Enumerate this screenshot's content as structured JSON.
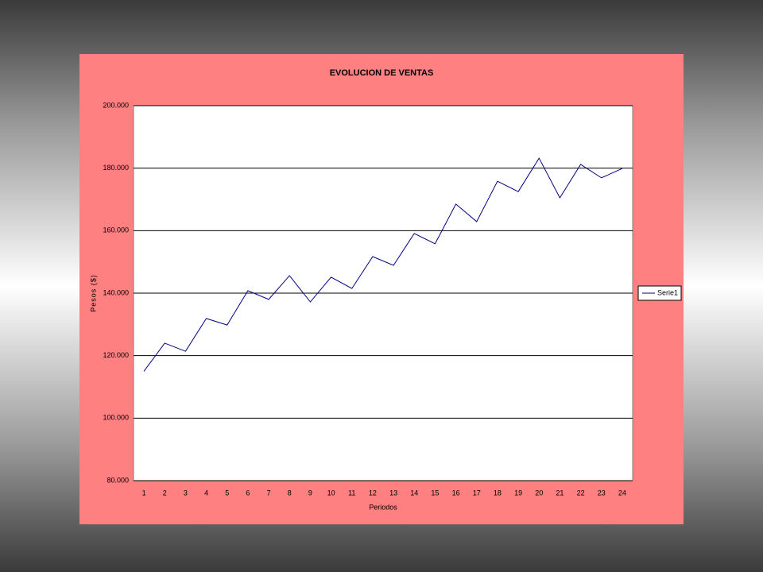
{
  "chart_data": {
    "type": "line",
    "title": "EVOLUCION DE VENTAS",
    "x_label": "Periodos",
    "y_label": "Pesos ($)",
    "categories": [
      "1",
      "2",
      "3",
      "4",
      "5",
      "6",
      "7",
      "8",
      "9",
      "10",
      "11",
      "12",
      "13",
      "14",
      "15",
      "16",
      "17",
      "18",
      "19",
      "20",
      "21",
      "22",
      "23",
      "24"
    ],
    "series": [
      {
        "name": "Serie1",
        "color": "#000080",
        "values": [
          115000,
          124000,
          121400,
          131900,
          129800,
          140800,
          138000,
          145600,
          137200,
          145100,
          141500,
          151700,
          148900,
          159100,
          155800,
          168500,
          162900,
          175800,
          172500,
          183200,
          170500,
          181200,
          176900,
          179900
        ]
      }
    ],
    "ylim": [
      80000,
      200000
    ],
    "yticks": [
      {
        "value": 80000,
        "label": "80.000"
      },
      {
        "value": 100000,
        "label": "100.000"
      },
      {
        "value": 120000,
        "label": "120.000"
      },
      {
        "value": 140000,
        "label": "140.000"
      },
      {
        "value": 160000,
        "label": "160.000"
      },
      {
        "value": 180000,
        "label": "180.000"
      },
      {
        "value": 200000,
        "label": "200.000"
      }
    ],
    "grid": true,
    "legend": "right"
  }
}
